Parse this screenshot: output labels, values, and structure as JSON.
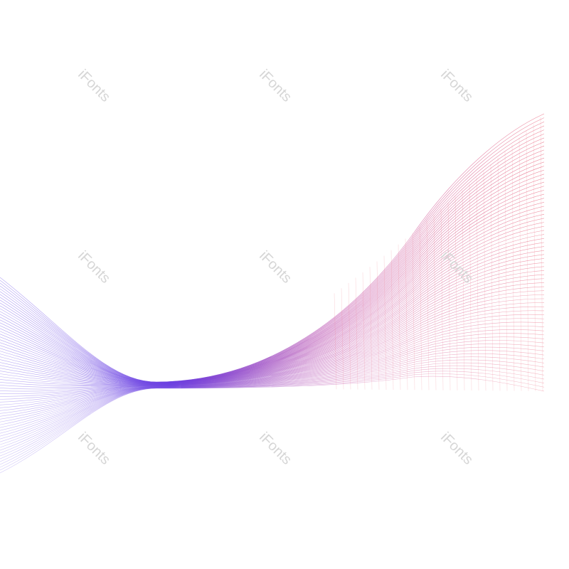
{
  "watermarks": [
    "iFonts",
    "iFonts",
    "iFonts",
    "iFonts",
    "iFonts",
    "iFonts",
    "iFonts",
    "iFonts",
    "iFonts"
  ]
}
